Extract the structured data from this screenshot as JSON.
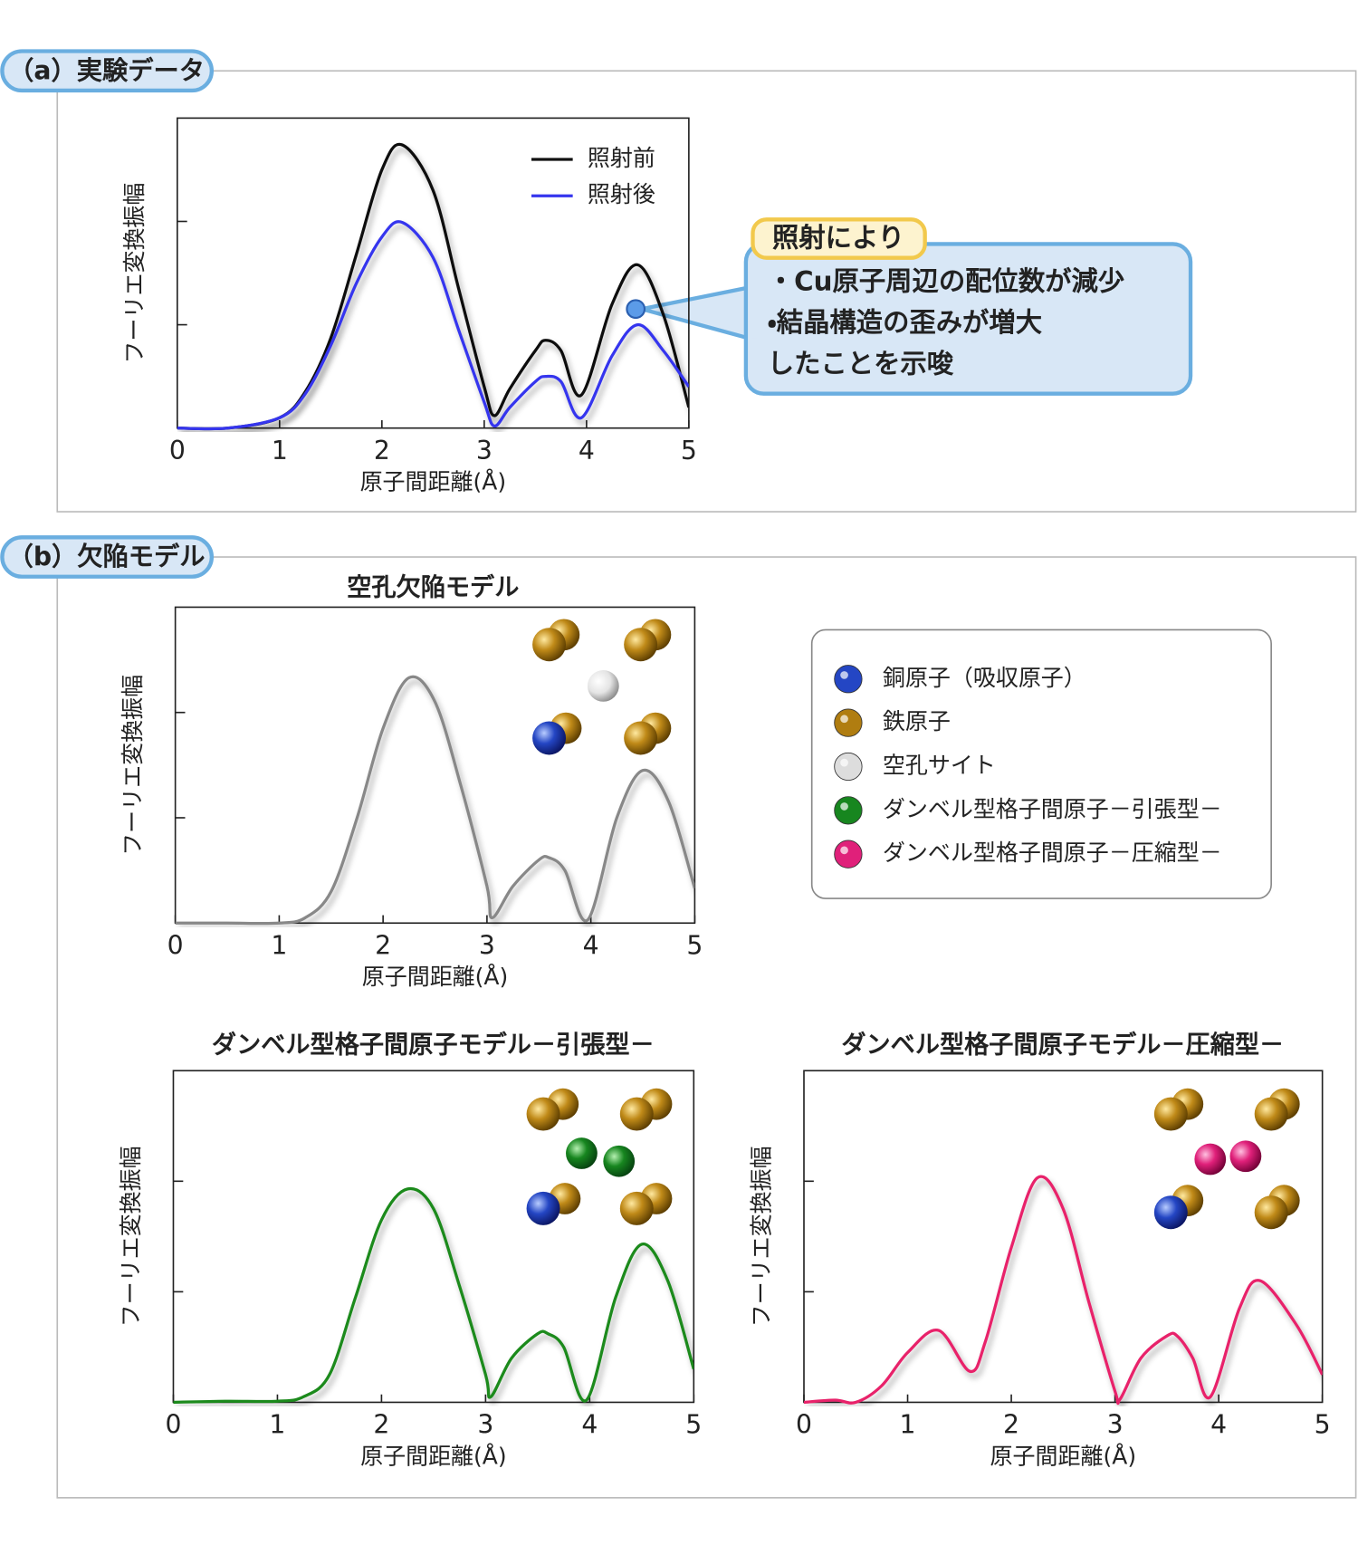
{
  "sections": [
    "（a）実験データ",
    "（b）欠陥モデル"
  ],
  "annotation": {
    "title": "照射により",
    "lines": [
      "・Cu原子周辺の配位数が減少",
      "・結晶構造の歪みが増大",
      "したことを示唆"
    ]
  },
  "atom_legend": [
    {
      "label": "銅原子（吸収原子）",
      "color": "#2446c4"
    },
    {
      "label": "鉄原子",
      "color": "#b07d10"
    },
    {
      "label": "空孔サイト",
      "color": "#dddddd"
    },
    {
      "label": "ダンベル型格子間原子－引張型－",
      "color": "#17861f"
    },
    {
      "label": "ダンベル型格子間原子－圧縮型－",
      "color": "#e0207a"
    }
  ],
  "chart_data": [
    {
      "type": "line",
      "xlabel": "原子間距離(Å)",
      "ylabel": "フーリエ変換振幅",
      "legend": "upper right",
      "x": [
        0,
        0.5,
        1,
        1.25,
        1.5,
        1.75,
        2,
        2.2,
        2.5,
        2.75,
        3,
        3.1,
        3.25,
        3.5,
        3.6,
        3.75,
        3.95,
        4.25,
        4.5,
        4.75,
        5
      ],
      "series": [
        {
          "name": "照射前",
          "color": "#111111",
          "values": [
            0,
            0,
            0.1,
            0.35,
            0.87,
            1.68,
            2.5,
            2.74,
            2.3,
            1.35,
            0.4,
            0.12,
            0.38,
            0.75,
            0.85,
            0.75,
            0.32,
            1.2,
            1.58,
            1.1,
            0.2
          ]
        },
        {
          "name": "照射後",
          "color": "#3535ee",
          "values": [
            0,
            0,
            0.1,
            0.33,
            0.8,
            1.4,
            1.85,
            1.99,
            1.65,
            0.95,
            0.25,
            0.02,
            0.2,
            0.45,
            0.5,
            0.45,
            0.1,
            0.7,
            1.0,
            0.75,
            0.4
          ]
        }
      ],
      "xlim": [
        0,
        5
      ],
      "xticks": [
        0,
        1,
        2,
        3,
        4,
        5
      ],
      "ylim": [
        0,
        3
      ],
      "yticks": [
        1,
        2
      ]
    },
    {
      "type": "line",
      "title": "空孔欠陥モデル",
      "xlabel": "原子間距離(Å)",
      "ylabel": "フーリエ変換振幅",
      "x": [
        0,
        0.5,
        1,
        1.25,
        1.5,
        1.75,
        2,
        2.25,
        2.5,
        2.75,
        3,
        3.05,
        3.25,
        3.5,
        3.6,
        3.75,
        3.97,
        4.25,
        4.5,
        4.75,
        5
      ],
      "series": [
        {
          "color": "#888888",
          "values": [
            0,
            0,
            0,
            0.05,
            0.3,
            1.0,
            1.85,
            2.33,
            2.1,
            1.3,
            0.35,
            0.05,
            0.35,
            0.6,
            0.62,
            0.5,
            0.03,
            1.0,
            1.45,
            1.15,
            0.33
          ]
        }
      ],
      "xlim": [
        0,
        5
      ],
      "xticks": [
        0,
        1,
        2,
        3,
        4,
        5
      ],
      "ylim": [
        0,
        3
      ],
      "yticks": [
        1,
        2
      ]
    },
    {
      "type": "line",
      "title": "ダンベル型格子間原子モデル－引張型－",
      "xlabel": "原子間距離(Å)",
      "ylabel": "フーリエ変換振幅",
      "x": [
        0,
        0.5,
        1,
        1.25,
        1.5,
        1.75,
        2,
        2.25,
        2.5,
        2.75,
        3,
        3.05,
        3.25,
        3.5,
        3.6,
        3.75,
        3.97,
        4.25,
        4.5,
        4.75,
        5
      ],
      "series": [
        {
          "color": "#1a8a1a",
          "values": [
            0,
            0.01,
            0.01,
            0.05,
            0.25,
            0.95,
            1.65,
            1.93,
            1.75,
            1.05,
            0.25,
            0.05,
            0.4,
            0.62,
            0.62,
            0.5,
            0.02,
            0.95,
            1.43,
            1.1,
            0.3
          ]
        }
      ],
      "xlim": [
        0,
        5
      ],
      "xticks": [
        0,
        1,
        2,
        3,
        4,
        5
      ],
      "ylim": [
        0,
        3
      ],
      "yticks": [
        1,
        2
      ]
    },
    {
      "type": "line",
      "title": "ダンベル型格子間原子モデル－圧縮型－",
      "xlabel": "原子間距離(Å)",
      "ylabel": "フーリエ変換振幅",
      "x": [
        0,
        0.3,
        0.5,
        0.75,
        1,
        1.3,
        1.6,
        1.75,
        2,
        2.25,
        2.5,
        2.75,
        3,
        3.05,
        3.25,
        3.5,
        3.6,
        3.75,
        3.92,
        4.2,
        4.4,
        4.75,
        5
      ],
      "series": [
        {
          "color": "#e8206a",
          "values": [
            0,
            0.02,
            0,
            0.15,
            0.45,
            0.65,
            0.28,
            0.55,
            1.4,
            2.03,
            1.75,
            0.9,
            0.1,
            0.03,
            0.4,
            0.6,
            0.6,
            0.4,
            0.05,
            0.85,
            1.1,
            0.7,
            0.25
          ]
        }
      ],
      "xlim": [
        0,
        5
      ],
      "xticks": [
        0,
        1,
        2,
        3,
        4,
        5
      ],
      "ylim": [
        0,
        3
      ],
      "yticks": [
        1,
        2
      ]
    }
  ]
}
